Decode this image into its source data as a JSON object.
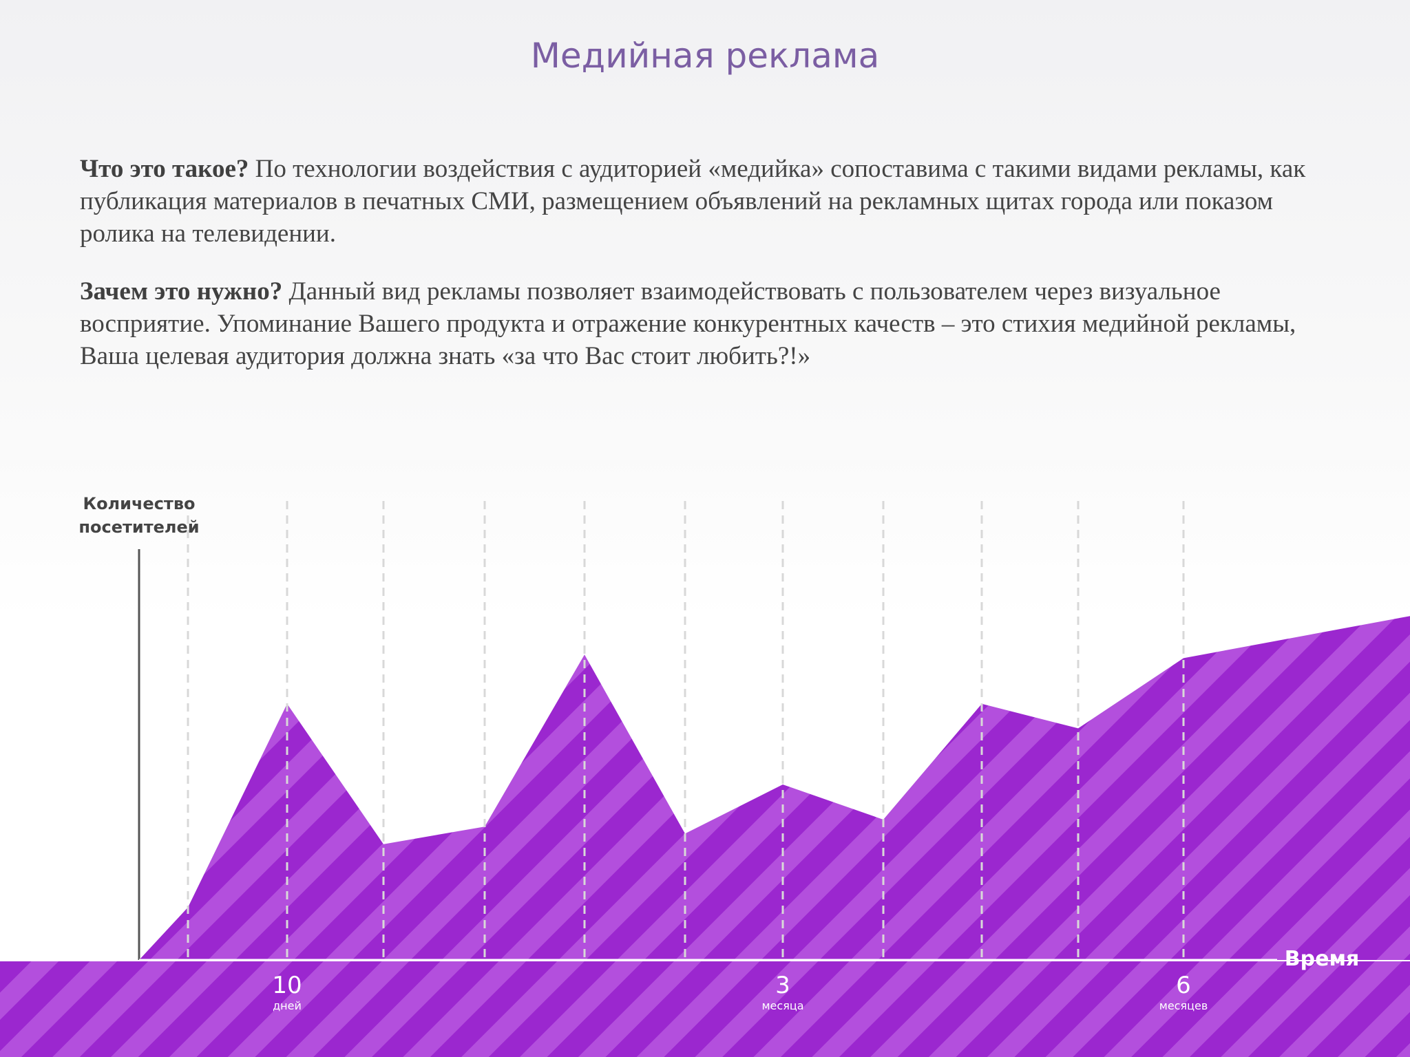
{
  "slide": {
    "title": "Медийная реклама"
  },
  "paragraphs": [
    {
      "question": "Что это такое?",
      "text": " По технологии воздействия с аудиторией «медийка» сопоставима с такими видами рекламы, как публикация материалов в печатных СМИ, размещением объявлений на рекламных щитах города или показом ролика на телевидении."
    },
    {
      "question": "Зачем это нужно?",
      "text": " Данный вид рекламы позволяет взаимодействовать с пользователем через визуальное восприятие.  Упоминание Вашего продукта и отражение конкурентных качеств – это стихия медийной рекламы, Ваша целевая аудитория должна знать «за что Вас стоит любить?!»"
    }
  ],
  "colors": {
    "title": "#7b5ea3",
    "fill": "#9b27cf",
    "stripe": "#b34fdd",
    "axis": "#555555",
    "gridline": "#d8d8d8",
    "tick_text": "#ffffff"
  },
  "chart_data": {
    "type": "area",
    "ylabel": [
      "Количество",
      "посетителей"
    ],
    "xlabel": "Время",
    "grid": true,
    "gridline_style": "dashed vertical",
    "fill_pattern": "diagonal stripes",
    "ylim": [
      0,
      100
    ],
    "x": [
      0,
      1,
      2,
      3,
      4,
      5,
      6,
      7,
      8,
      9,
      10,
      11,
      12
    ],
    "values": [
      0,
      15,
      73,
      33,
      38,
      87,
      36,
      50,
      40,
      73,
      66,
      86,
      98
    ],
    "ticks": [
      {
        "x": 2,
        "number": "10",
        "unit": "дней"
      },
      {
        "x": 7,
        "number": "3",
        "unit": "месяца"
      },
      {
        "x": 11,
        "number": "6",
        "unit": "месяцев"
      }
    ]
  }
}
